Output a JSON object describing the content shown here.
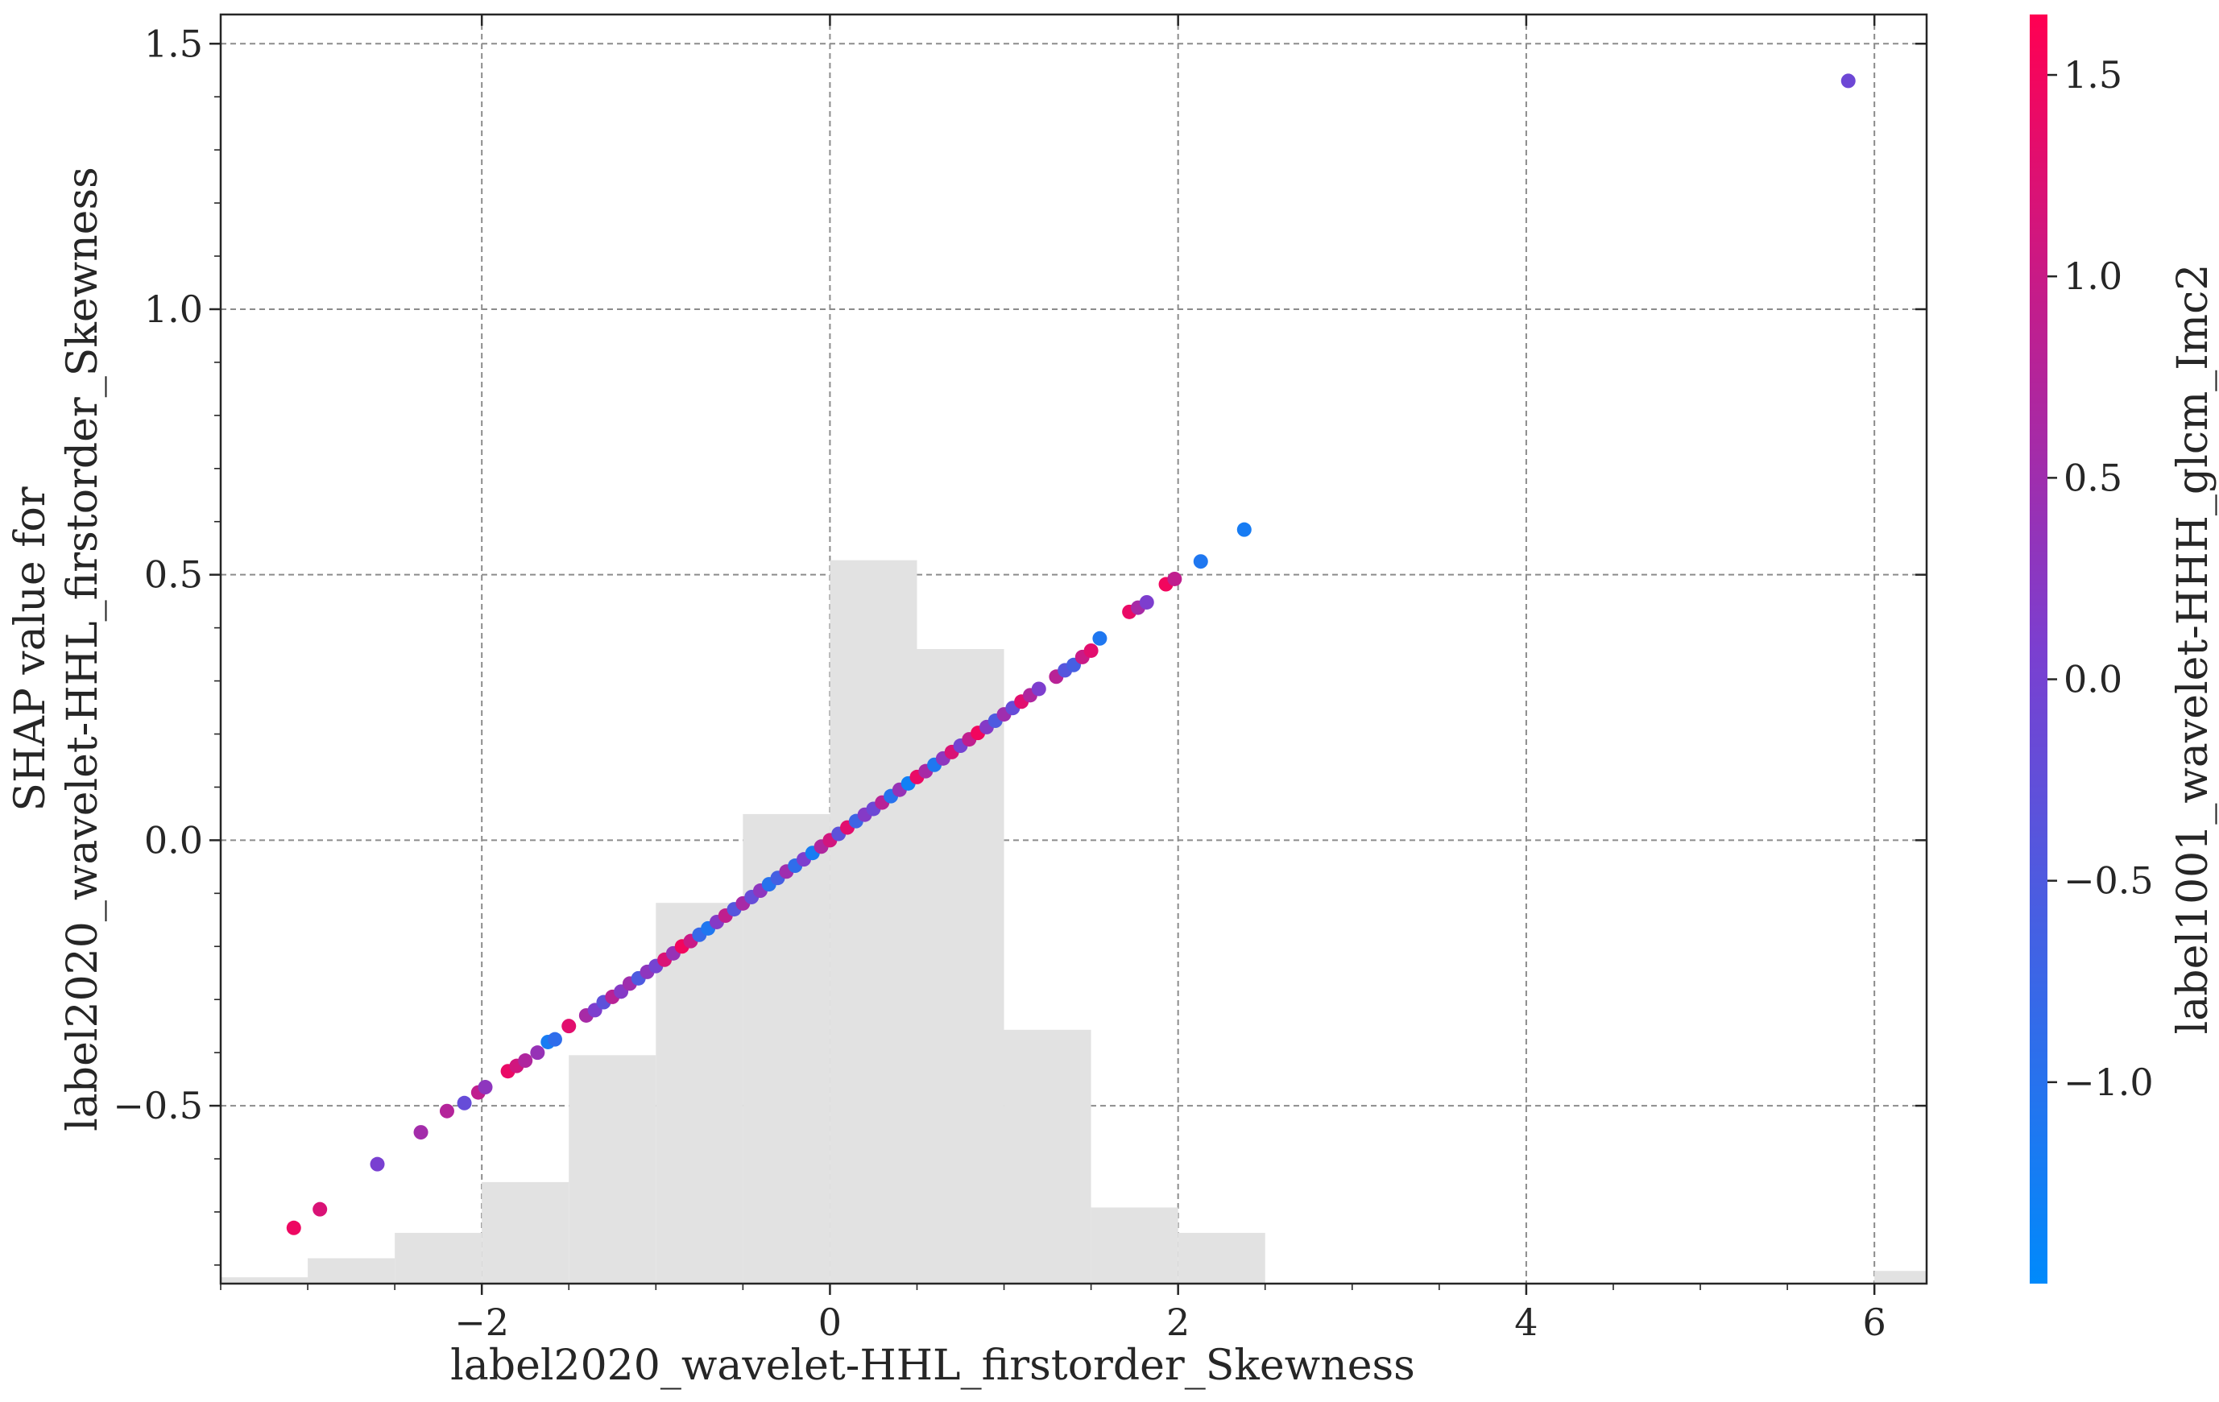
{
  "chart_data": {
    "type": "scatter",
    "xlabel": "label2020_wavelet-HHL_firstorder_Skewness",
    "ylabel": [
      "SHAP value for",
      "label2020_wavelet-HHL_firstorder_Skewness"
    ],
    "colorbar_label": "label1001_wavelet-HHH_glcm_Imc2",
    "xlim": [
      -3.5,
      6.3
    ],
    "ylim": [
      -0.835,
      1.555
    ],
    "x_ticks": [
      -2,
      0,
      2,
      4,
      6
    ],
    "x_tick_labels": [
      "−2",
      "0",
      "2",
      "4",
      "6"
    ],
    "y_ticks": [
      -0.5,
      0.0,
      0.5,
      1.0,
      1.5
    ],
    "y_tick_labels": [
      "−0.5",
      "0.0",
      "0.5",
      "1.0",
      "1.5"
    ],
    "colorbar": {
      "range": [
        -1.5,
        1.65
      ],
      "ticks": [
        -1.0,
        -0.5,
        0.0,
        0.5,
        1.0,
        1.5
      ],
      "tick_labels": [
        "−1.0",
        "−0.5",
        "0.0",
        "0.5",
        "1.0",
        "1.5"
      ],
      "colors": [
        "#008afb",
        "#7b3fd0",
        "#ff0052"
      ]
    },
    "grid": true,
    "histogram": {
      "edges": [
        -3.5,
        -3.0,
        -2.5,
        -2.0,
        -1.5,
        -1.0,
        -0.5,
        0.0,
        0.5,
        1.0,
        1.5,
        2.0,
        2.5,
        3.0,
        3.5,
        4.0,
        4.5,
        5.0,
        5.5,
        6.0,
        6.3
      ],
      "heights": [
        0.005,
        0.02,
        0.04,
        0.08,
        0.18,
        0.3,
        0.37,
        0.57,
        0.5,
        0.2,
        0.06,
        0.04,
        0,
        0,
        0,
        0,
        0,
        0,
        0,
        0.01
      ]
    },
    "points": [
      {
        "x": -3.08,
        "y": -0.73,
        "c": 1.45
      },
      {
        "x": -2.93,
        "y": -0.695,
        "c": 1.2
      },
      {
        "x": -2.6,
        "y": -0.61,
        "c": 0.05
      },
      {
        "x": -2.35,
        "y": -0.55,
        "c": 0.55
      },
      {
        "x": -2.2,
        "y": -0.51,
        "c": 0.75
      },
      {
        "x": -2.1,
        "y": -0.495,
        "c": -0.2
      },
      {
        "x": -2.02,
        "y": -0.475,
        "c": 0.9
      },
      {
        "x": -1.98,
        "y": -0.465,
        "c": 0.3
      },
      {
        "x": -1.85,
        "y": -0.435,
        "c": 1.4
      },
      {
        "x": -1.8,
        "y": -0.425,
        "c": 1.1
      },
      {
        "x": -1.75,
        "y": -0.415,
        "c": 0.7
      },
      {
        "x": -1.68,
        "y": -0.4,
        "c": 0.4
      },
      {
        "x": -1.62,
        "y": -0.38,
        "c": -1.2
      },
      {
        "x": -1.58,
        "y": -0.375,
        "c": -0.9
      },
      {
        "x": -1.5,
        "y": -0.35,
        "c": 1.3
      },
      {
        "x": -1.4,
        "y": -0.33,
        "c": 0.6
      },
      {
        "x": -1.35,
        "y": -0.32,
        "c": 0.1
      },
      {
        "x": -1.3,
        "y": -0.305,
        "c": -0.3
      },
      {
        "x": -1.25,
        "y": -0.295,
        "c": 0.8
      },
      {
        "x": -1.2,
        "y": -0.285,
        "c": 0.2
      },
      {
        "x": -1.15,
        "y": -0.27,
        "c": 0.5
      },
      {
        "x": -1.1,
        "y": -0.26,
        "c": -0.5
      },
      {
        "x": -1.05,
        "y": -0.248,
        "c": 0.3
      },
      {
        "x": -1.0,
        "y": -0.237,
        "c": 0.0
      },
      {
        "x": -0.95,
        "y": -0.225,
        "c": 1.2
      },
      {
        "x": -0.9,
        "y": -0.213,
        "c": 0.4
      },
      {
        "x": -0.85,
        "y": -0.2,
        "c": 1.5
      },
      {
        "x": -0.8,
        "y": -0.19,
        "c": 1.0
      },
      {
        "x": -0.75,
        "y": -0.178,
        "c": -0.8
      },
      {
        "x": -0.7,
        "y": -0.166,
        "c": -1.1
      },
      {
        "x": -0.65,
        "y": -0.154,
        "c": 0.2
      },
      {
        "x": -0.6,
        "y": -0.142,
        "c": 0.9
      },
      {
        "x": -0.55,
        "y": -0.13,
        "c": -0.4
      },
      {
        "x": -0.5,
        "y": -0.119,
        "c": 0.6
      },
      {
        "x": -0.45,
        "y": -0.107,
        "c": -0.2
      },
      {
        "x": -0.4,
        "y": -0.095,
        "c": 0.3
      },
      {
        "x": -0.35,
        "y": -0.083,
        "c": -1.0
      },
      {
        "x": -0.3,
        "y": -0.071,
        "c": -0.6
      },
      {
        "x": -0.25,
        "y": -0.059,
        "c": 0.5
      },
      {
        "x": -0.2,
        "y": -0.048,
        "c": -0.9
      },
      {
        "x": -0.15,
        "y": -0.036,
        "c": 0.1
      },
      {
        "x": -0.1,
        "y": -0.024,
        "c": -1.2
      },
      {
        "x": -0.05,
        "y": -0.012,
        "c": 0.7
      },
      {
        "x": 0.0,
        "y": 0.0,
        "c": 1.1
      },
      {
        "x": 0.05,
        "y": 0.012,
        "c": -0.3
      },
      {
        "x": 0.1,
        "y": 0.024,
        "c": 1.3
      },
      {
        "x": 0.15,
        "y": 0.036,
        "c": -0.7
      },
      {
        "x": 0.2,
        "y": 0.048,
        "c": 0.2
      },
      {
        "x": 0.25,
        "y": 0.059,
        "c": -0.1
      },
      {
        "x": 0.3,
        "y": 0.071,
        "c": 0.8
      },
      {
        "x": 0.35,
        "y": 0.083,
        "c": -1.0
      },
      {
        "x": 0.4,
        "y": 0.095,
        "c": 0.4
      },
      {
        "x": 0.45,
        "y": 0.107,
        "c": -1.3
      },
      {
        "x": 0.5,
        "y": 0.119,
        "c": 1.4
      },
      {
        "x": 0.55,
        "y": 0.13,
        "c": 0.6
      },
      {
        "x": 0.6,
        "y": 0.142,
        "c": -1.1
      },
      {
        "x": 0.65,
        "y": 0.154,
        "c": 0.3
      },
      {
        "x": 0.7,
        "y": 0.166,
        "c": 1.2
      },
      {
        "x": 0.75,
        "y": 0.178,
        "c": 0.0
      },
      {
        "x": 0.8,
        "y": 0.19,
        "c": 0.9
      },
      {
        "x": 0.85,
        "y": 0.202,
        "c": 1.5
      },
      {
        "x": 0.9,
        "y": 0.213,
        "c": 0.2
      },
      {
        "x": 0.95,
        "y": 0.225,
        "c": -0.5
      },
      {
        "x": 1.0,
        "y": 0.237,
        "c": 0.5
      },
      {
        "x": 1.05,
        "y": 0.249,
        "c": -0.2
      },
      {
        "x": 1.1,
        "y": 0.261,
        "c": 1.3
      },
      {
        "x": 1.15,
        "y": 0.273,
        "c": 0.7
      },
      {
        "x": 1.2,
        "y": 0.285,
        "c": 0.1
      },
      {
        "x": 1.3,
        "y": 0.308,
        "c": 0.8
      },
      {
        "x": 1.35,
        "y": 0.32,
        "c": -0.4
      },
      {
        "x": 1.4,
        "y": 0.33,
        "c": -0.6
      },
      {
        "x": 1.45,
        "y": 0.345,
        "c": 1.0
      },
      {
        "x": 1.5,
        "y": 0.357,
        "c": 1.3
      },
      {
        "x": 1.55,
        "y": 0.38,
        "c": -1.1
      },
      {
        "x": 1.72,
        "y": 0.43,
        "c": 1.4
      },
      {
        "x": 1.77,
        "y": 0.438,
        "c": 0.6
      },
      {
        "x": 1.82,
        "y": 0.448,
        "c": 0.1
      },
      {
        "x": 1.93,
        "y": 0.482,
        "c": 1.5
      },
      {
        "x": 1.98,
        "y": 0.492,
        "c": 0.9
      },
      {
        "x": 2.13,
        "y": 0.525,
        "c": -1.1
      },
      {
        "x": 2.38,
        "y": 0.585,
        "c": -1.2
      },
      {
        "x": 5.85,
        "y": 1.43,
        "c": -0.1
      }
    ]
  }
}
